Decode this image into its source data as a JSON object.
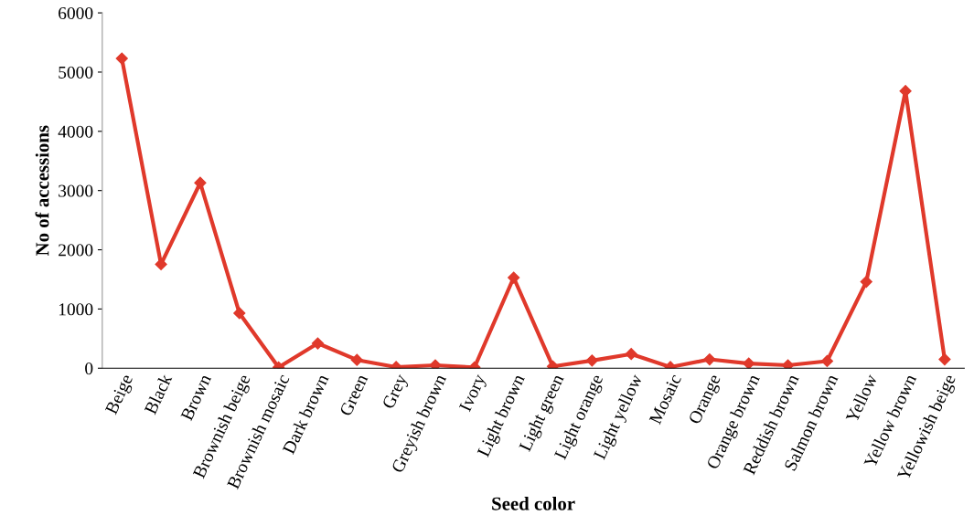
{
  "chart_data": {
    "type": "line",
    "xlabel": "Seed color",
    "ylabel": "No of accessions",
    "categories": [
      "Beige",
      "Black",
      "Brown",
      "Brownish beige",
      "Brownish mosaic",
      "Dark brown",
      "Green",
      "Grey",
      "Greyish brown",
      "Ivory",
      "Light brown",
      "Light green",
      "Light orange",
      "Light yellow",
      "Mosaic",
      "Orange",
      "Orange brown",
      "Reddish brown",
      "Salmon brown",
      "Yellow",
      "Yellow brown",
      "Yellowish beige"
    ],
    "series": [
      {
        "color": "#e0392b",
        "values": [
          5230,
          1755,
          3130,
          930,
          15,
          420,
          140,
          20,
          50,
          15,
          1530,
          30,
          130,
          240,
          20,
          150,
          80,
          50,
          120,
          1460,
          4680,
          150
        ]
      }
    ],
    "ylim": [
      0,
      6000
    ],
    "yticks": [
      0,
      1000,
      2000,
      3000,
      4000,
      5000,
      6000
    ],
    "marker": "diamond",
    "line_style": "solid",
    "grid": false,
    "legend": false
  }
}
